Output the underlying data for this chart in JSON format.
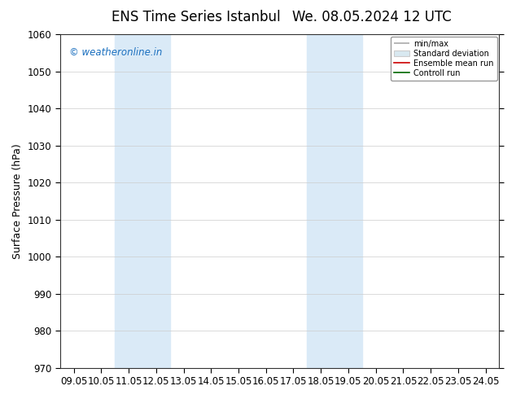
{
  "title": "ENS Time Series Istanbul",
  "title2": "We. 08.05.2024 12 UTC",
  "ylabel": "Surface Pressure (hPa)",
  "ylim": [
    970,
    1060
  ],
  "yticks": [
    970,
    980,
    990,
    1000,
    1010,
    1020,
    1030,
    1040,
    1050,
    1060
  ],
  "xtick_labels": [
    "09.05",
    "10.05",
    "11.05",
    "12.05",
    "13.05",
    "14.05",
    "15.05",
    "16.05",
    "17.05",
    "18.05",
    "19.05",
    "20.05",
    "21.05",
    "22.05",
    "23.05",
    "24.05"
  ],
  "watermark": "© weatheronline.in",
  "watermark_color": "#1a6fbf",
  "shaded_bands": [
    {
      "xmin": 2,
      "xmax": 4
    },
    {
      "xmin": 9,
      "xmax": 11
    }
  ],
  "shade_color": "#daeaf7",
  "legend_labels": [
    "min/max",
    "Standard deviation",
    "Ensemble mean run",
    "Controll run"
  ],
  "legend_colors": [
    "#aaaaaa",
    "#cccccc",
    "#cc0000",
    "#006600"
  ],
  "bg_color": "#ffffff",
  "grid_color": "#cccccc",
  "title_fontsize": 12,
  "label_fontsize": 9,
  "tick_fontsize": 8.5
}
